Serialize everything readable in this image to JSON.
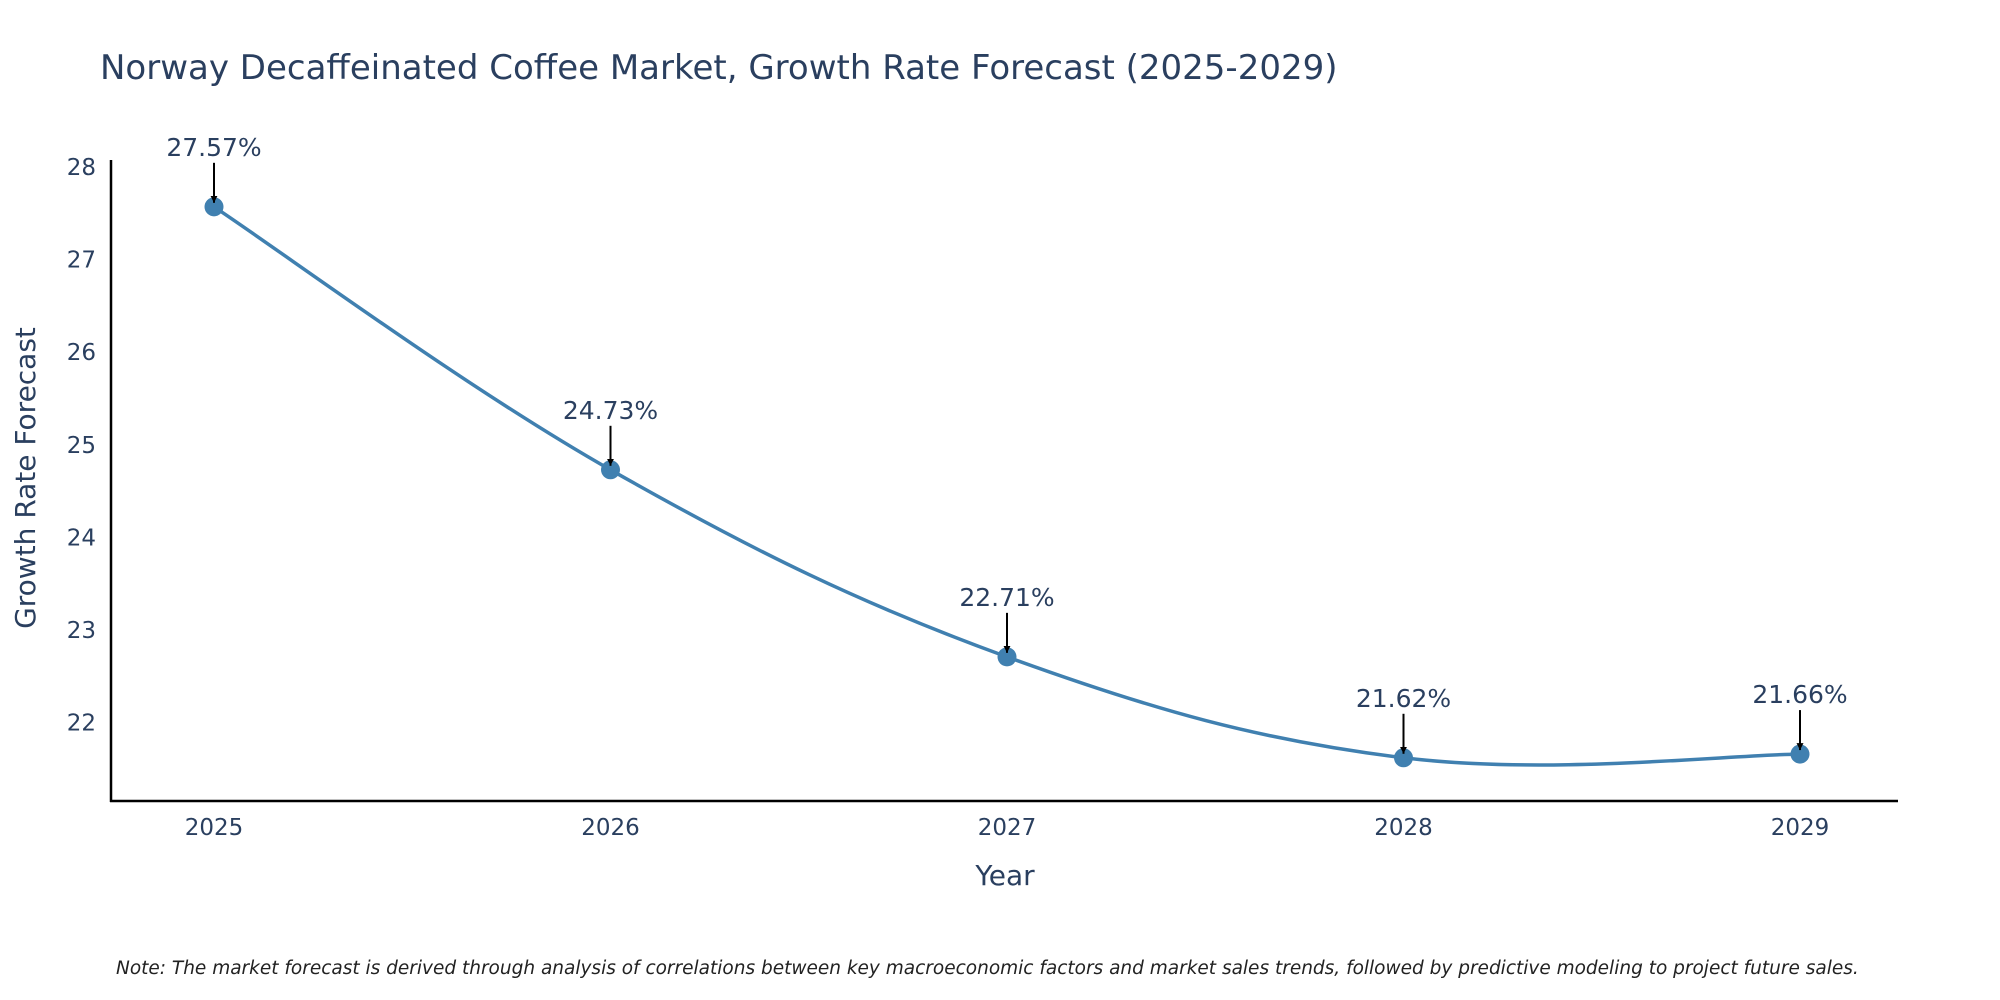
{
  "chart_data": {
    "type": "line",
    "title": "Norway Decaffeinated Coffee Market, Growth Rate Forecast (2025-2029)",
    "xlabel": "Year",
    "ylabel": "Growth Rate Forecast",
    "categories": [
      "2025",
      "2026",
      "2027",
      "2028",
      "2029"
    ],
    "values": [
      27.57,
      24.73,
      22.71,
      21.62,
      21.66
    ],
    "data_labels": [
      "27.57%",
      "24.73%",
      "22.71%",
      "21.62%",
      "21.66%"
    ],
    "y_ticks": [
      22,
      23,
      24,
      25,
      26,
      27,
      28
    ],
    "ylim": [
      21.1,
      28.05
    ],
    "line_shape": "spline",
    "grid": false,
    "legend": "none",
    "line_color": "#4080b0",
    "marker_color": "#4080b0",
    "annotation_arrow_color": "#000000",
    "text_color": "#2a3f5f",
    "note": "Note: The market forecast is derived through analysis of correlations between key macroeconomic factors and market sales trends, followed by predictive modeling to project future sales."
  }
}
